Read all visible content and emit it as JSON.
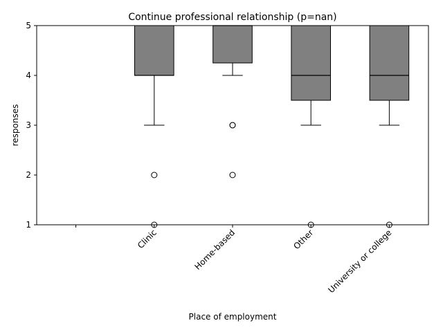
{
  "chart_data": {
    "type": "box",
    "title": "Continue professional relationship (p=nan)",
    "xlabel": "Place of employment",
    "ylabel": "responses",
    "ylim": [
      1,
      5
    ],
    "yticks": [
      1,
      2,
      3,
      4,
      5
    ],
    "categories": [
      "",
      "Clinic",
      "Home-based",
      "Other",
      "University or college"
    ],
    "boxes": [
      null,
      {
        "whisker_low": 3,
        "q1": 4,
        "median": 4,
        "q3": 5,
        "whisker_high": 5,
        "outliers": [
          2,
          1
        ]
      },
      {
        "whisker_low": 4,
        "q1": 4.25,
        "median": 5,
        "q3": 5,
        "whisker_high": 5,
        "outliers": [
          3,
          3,
          2
        ]
      },
      {
        "whisker_low": 3,
        "q1": 3.5,
        "median": 4,
        "q3": 5,
        "whisker_high": 5,
        "outliers": [
          1
        ]
      },
      {
        "whisker_low": 3,
        "q1": 3.5,
        "median": 4,
        "q3": 5,
        "whisker_high": 5,
        "outliers": [
          1
        ]
      }
    ],
    "box_color": "#808080",
    "edge_color": "#000000",
    "grid": false,
    "legend": "none"
  }
}
